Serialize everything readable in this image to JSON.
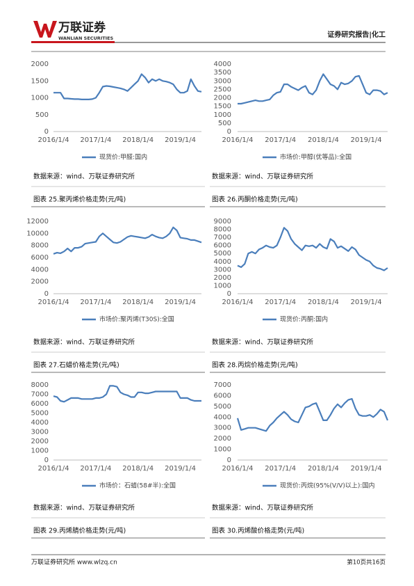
{
  "header": {
    "logo": "万联证券",
    "logo_en": "WANLIAN SECURITIES",
    "report_type": "证券研究报告|化工"
  },
  "footer": {
    "left": "万联证券研究所 www.wlzq.cn",
    "right": "第10页共16页"
  },
  "sources": [
    "数据来源：wind、万联证券研究所",
    "数据来源：wind、万联证券研究所",
    "数据来源：wind、万联证券研究所",
    "数据来源：wind、万联证券研究所",
    "数据来源：wind、万联证券研究所",
    "数据来源：wind、万联证券研究所"
  ],
  "captions": [
    "图表 25.聚丙烯价格走势(元/吨)",
    "图表 26.丙酮价格走势(元/吨)",
    "图表 27.石蜡价格走势(元/吨)",
    "图表 28.丙烷价格走势(元/吨)",
    "图表 29.丙烯腈价格走势(元/吨)",
    "图表 30.丙烯酸价格走势(元/吨)"
  ],
  "chart_data": [
    {
      "type": "line",
      "categories": [
        "2016/1/4",
        null,
        null,
        null,
        null,
        null,
        null,
        null,
        null,
        null,
        null,
        null,
        "2017/1/4",
        null,
        null,
        null,
        null,
        null,
        null,
        null,
        null,
        null,
        null,
        null,
        "2018/1/4",
        null,
        null,
        null,
        null,
        null,
        null,
        null,
        null,
        null,
        null,
        null,
        "2019/1/4",
        null,
        null,
        null,
        null,
        null,
        null
      ],
      "series": [
        {
          "name": "现货价:甲醛:国内",
          "color": "#4a7ebb",
          "values": [
            1150,
            1150,
            1150,
            980,
            980,
            970,
            960,
            960,
            950,
            950,
            950,
            960,
            1000,
            1150,
            1330,
            1350,
            1340,
            1320,
            1300,
            1280,
            1250,
            1200,
            1300,
            1400,
            1500,
            1700,
            1600,
            1450,
            1550,
            1500,
            1550,
            1500,
            1480,
            1450,
            1400,
            1250,
            1150,
            1150,
            1200,
            1550,
            1350,
            1200,
            1180
          ]
        }
      ],
      "ylim": [
        0,
        2000
      ],
      "yticks": [
        0,
        500,
        1000,
        1500,
        2000
      ]
    },
    {
      "type": "line",
      "categories": [
        "2016/1/4",
        null,
        null,
        null,
        null,
        null,
        null,
        null,
        null,
        null,
        null,
        null,
        "2017/1/4",
        null,
        null,
        null,
        null,
        null,
        null,
        null,
        null,
        null,
        null,
        null,
        "2018/1/4",
        null,
        null,
        null,
        null,
        null,
        null,
        null,
        null,
        null,
        null,
        null,
        "2019/1/4",
        null,
        null,
        null,
        null,
        null,
        null
      ],
      "series": [
        {
          "name": "市场价:甲醇(优等品):全国",
          "color": "#4a7ebb",
          "values": [
            1650,
            1650,
            1700,
            1750,
            1800,
            1850,
            1800,
            1800,
            1850,
            1900,
            2150,
            2300,
            2350,
            2800,
            2800,
            2650,
            2550,
            2450,
            2600,
            2700,
            2300,
            2200,
            2450,
            3000,
            3400,
            3100,
            2800,
            2700,
            2500,
            2900,
            2800,
            2850,
            3000,
            3250,
            3300,
            2800,
            2300,
            2200,
            2450,
            2450,
            2400,
            2200,
            2300
          ]
        }
      ],
      "ylim": [
        0,
        4000
      ],
      "yticks": [
        0,
        500,
        1000,
        1500,
        2000,
        2500,
        3000,
        3500,
        4000
      ]
    },
    {
      "type": "line",
      "categories": [
        "2016/1/4",
        null,
        null,
        null,
        null,
        null,
        null,
        null,
        null,
        null,
        null,
        null,
        "2017/1/4",
        null,
        null,
        null,
        null,
        null,
        null,
        null,
        null,
        null,
        null,
        null,
        "2018/1/4",
        null,
        null,
        null,
        null,
        null,
        null,
        null,
        null,
        null,
        null,
        null,
        "2019/1/4",
        null,
        null,
        null,
        null,
        null,
        null
      ],
      "series": [
        {
          "name": "市场价:聚丙烯(T30S):全国",
          "color": "#4a7ebb",
          "values": [
            6600,
            6800,
            6700,
            7000,
            7500,
            7000,
            7600,
            7600,
            7800,
            8300,
            8400,
            8500,
            8600,
            9500,
            10000,
            9500,
            9000,
            8500,
            8400,
            8600,
            9000,
            9400,
            9600,
            9500,
            9400,
            9300,
            9200,
            9400,
            9800,
            9500,
            9300,
            9200,
            9500,
            10000,
            11000,
            10500,
            9300,
            9200,
            9100,
            8900,
            8900,
            8700,
            8500
          ]
        }
      ],
      "ylim": [
        0,
        12000
      ],
      "yticks": [
        0,
        2000,
        4000,
        6000,
        8000,
        10000,
        12000
      ]
    },
    {
      "type": "line",
      "categories": [
        "2016/1/4",
        null,
        null,
        null,
        null,
        null,
        null,
        null,
        null,
        null,
        null,
        null,
        "2017/1/4",
        null,
        null,
        null,
        null,
        null,
        null,
        null,
        null,
        null,
        null,
        null,
        "2018/1/4",
        null,
        null,
        null,
        null,
        null,
        null,
        null,
        null,
        null,
        null,
        null,
        "2019/1/4",
        null,
        null,
        null,
        null,
        null,
        null
      ],
      "series": [
        {
          "name": "现货价:丙酮:国内",
          "color": "#4a7ebb",
          "values": [
            3500,
            3300,
            3700,
            5000,
            5200,
            5000,
            5500,
            5700,
            6000,
            5800,
            5700,
            6000,
            7000,
            8200,
            7800,
            6800,
            6200,
            5800,
            5400,
            6000,
            5900,
            6000,
            5700,
            6200,
            5800,
            5600,
            6800,
            6500,
            5700,
            5900,
            5600,
            5300,
            5800,
            5500,
            4800,
            4500,
            4200,
            4000,
            3500,
            3200,
            3100,
            2900,
            3200
          ]
        }
      ],
      "ylim": [
        0,
        9000
      ],
      "yticks": [
        0,
        1000,
        2000,
        3000,
        4000,
        5000,
        6000,
        7000,
        8000,
        9000
      ]
    },
    {
      "type": "line",
      "categories": [
        "2016/1/4",
        null,
        null,
        null,
        null,
        null,
        null,
        null,
        null,
        null,
        null,
        null,
        "2017/1/4",
        null,
        null,
        null,
        null,
        null,
        null,
        null,
        null,
        null,
        null,
        null,
        "2018/1/4",
        null,
        null,
        null,
        null,
        null,
        null,
        null,
        null,
        null,
        null,
        null,
        "2019/1/4",
        null,
        null,
        null,
        null,
        null,
        null
      ],
      "series": [
        {
          "name": "市场价：石蜡(58#半):全国",
          "color": "#4a7ebb",
          "values": [
            6800,
            6700,
            6300,
            6200,
            6400,
            6600,
            6600,
            6600,
            6500,
            6500,
            6500,
            6500,
            6600,
            6600,
            6700,
            7000,
            7900,
            7900,
            7800,
            7200,
            7000,
            6900,
            6700,
            6700,
            7200,
            7200,
            7100,
            7100,
            7200,
            7300,
            7300,
            7300,
            7300,
            7300,
            7300,
            7300,
            6600,
            6600,
            6600,
            6400,
            6300,
            6300,
            6300
          ]
        }
      ],
      "ylim": [
        0,
        8000
      ],
      "yticks": [
        0,
        1000,
        2000,
        3000,
        4000,
        5000,
        6000,
        7000,
        8000
      ]
    },
    {
      "type": "line",
      "categories": [
        "2016/1/4",
        null,
        null,
        null,
        null,
        null,
        null,
        null,
        null,
        null,
        null,
        null,
        "2017/1/4",
        null,
        null,
        null,
        null,
        null,
        null,
        null,
        null,
        null,
        null,
        null,
        "2018/1/4",
        null,
        null,
        null,
        null,
        null,
        null,
        null,
        null,
        null,
        null,
        null,
        "2019/1/4",
        null,
        null,
        null,
        null,
        null,
        null
      ],
      "series": [
        {
          "name": "现货价:丙烷(95%(V/V)以上):国内",
          "color": "#4a7ebb",
          "values": [
            3900,
            2800,
            2900,
            3000,
            3000,
            3000,
            2900,
            2800,
            2700,
            3200,
            3500,
            3900,
            4200,
            4500,
            4200,
            3800,
            3600,
            3500,
            4200,
            4900,
            5000,
            5200,
            5300,
            4500,
            3700,
            3700,
            4200,
            4800,
            5200,
            4900,
            5300,
            5600,
            5700,
            4800,
            4200,
            4100,
            4100,
            4200,
            4000,
            4300,
            4700,
            4500,
            3700
          ]
        }
      ],
      "ylim": [
        0,
        7000
      ],
      "yticks": [
        0,
        1000,
        2000,
        3000,
        4000,
        5000,
        6000,
        7000
      ]
    }
  ]
}
